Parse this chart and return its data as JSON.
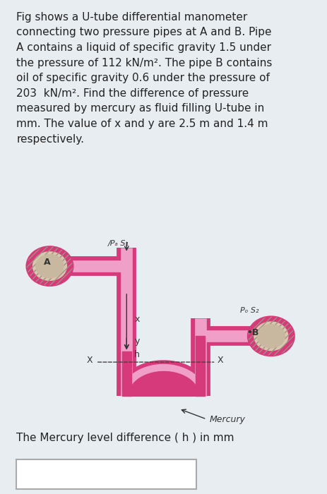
{
  "title_text": "Fig shows a U-tube differential manometer\nconnecting two pressure pipes at A and B. Pipe\nA contains a liquid of specific gravity 1.5 under\nthe pressure of 112 kN/m². The pipe B contains\noil of specific gravity 0.6 under the pressure of\n203  kN/m². Find the difference of pressure\nmeasured by mercury as fluid filling U-tube in\nmm. The value of x and y are 2.5 m and 1.4 m\nrespectively.",
  "bottom_label": "The Mercury level difference ( h ) in mm",
  "bg_color": "#e8edf2",
  "fig_bg": "#d8dfe8",
  "box_bg": "#ffffff",
  "pipe_color": "#d63a7a",
  "pipe_edge": "#b02060",
  "pipe_fill": "#e87ab0",
  "label_PA": "/Pₐ S₁",
  "label_PB": "Pₒ S₂",
  "label_A": "A",
  "label_B": "•B",
  "label_X_left": "X",
  "label_X_right": "X",
  "label_Mercury": "Mercury",
  "label_x": "x",
  "label_y": "y",
  "label_h": "h",
  "font_main": 11,
  "font_small": 9
}
